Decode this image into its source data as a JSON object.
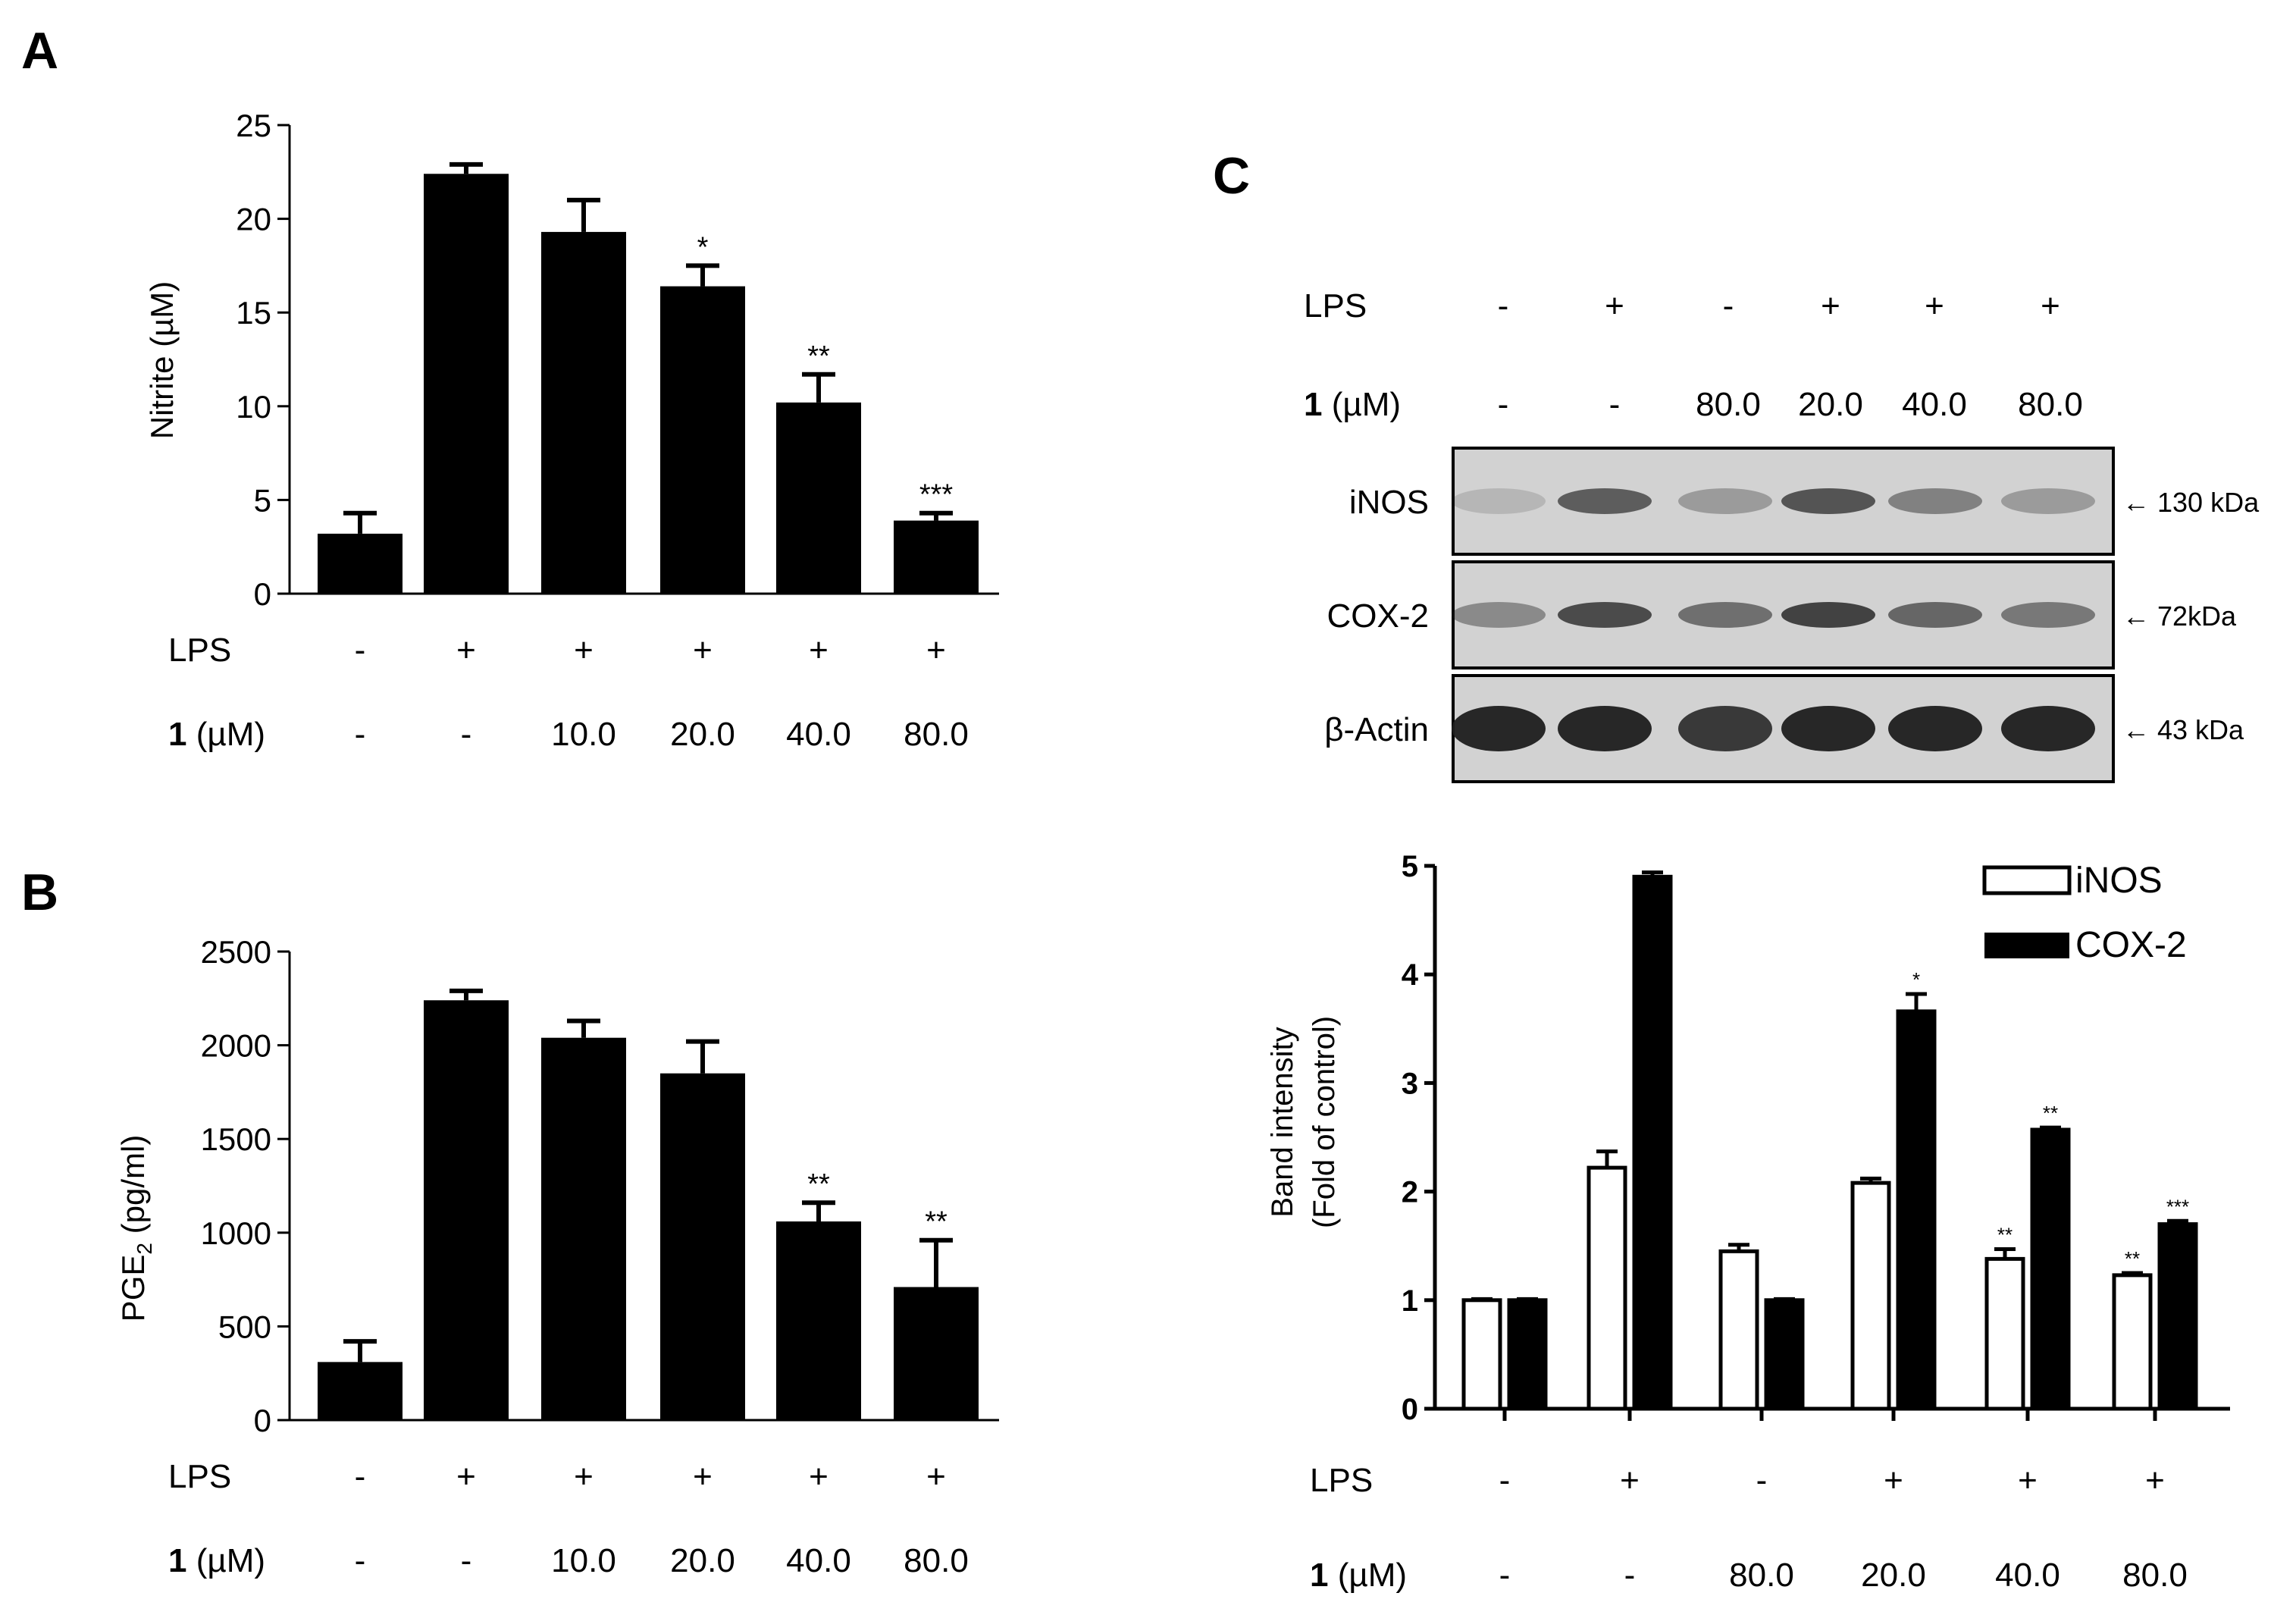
{
  "panels": [
    {
      "letter": "A"
    },
    {
      "letter": "B"
    },
    {
      "letter": "C"
    }
  ],
  "treatment_rows": {
    "lps_label": "LPS",
    "compound_bold": "1",
    "compound_unit": " (µM)",
    "lps_ab": [
      "-",
      "+",
      "+",
      "+",
      "+",
      "+"
    ],
    "dose_ab": [
      "-",
      "-",
      "10.0",
      "20.0",
      "40.0",
      "80.0"
    ],
    "lps_c": [
      "-",
      "+",
      "-",
      "+",
      "+",
      "+"
    ],
    "dose_c": [
      "-",
      "-",
      "80.0",
      "20.0",
      "40.0",
      "80.0"
    ]
  },
  "blot": {
    "row_labels": [
      "iNOS",
      "COX-2",
      "β-Actin"
    ],
    "mw_labels": [
      "← 130 kDa",
      "← 72kDa",
      "← 43 kDa"
    ],
    "band_intensity": {
      "iNOS": [
        0.15,
        0.65,
        0.3,
        0.7,
        0.45,
        0.3
      ],
      "COX-2": [
        0.4,
        0.75,
        0.55,
        0.8,
        0.6,
        0.5
      ],
      "β-Actin": [
        0.95,
        0.95,
        0.85,
        0.95,
        0.95,
        0.95
      ]
    }
  },
  "colors": {
    "bar_black": "#000000",
    "blot_bg": "#d2d2d2",
    "band": "#1e1e1e"
  },
  "chart_data": [
    {
      "panel": "A",
      "type": "bar",
      "categories": [
        "1",
        "2",
        "3",
        "4",
        "5",
        "6"
      ],
      "values": [
        3.2,
        22.4,
        19.3,
        16.4,
        10.2,
        3.9
      ],
      "errors": [
        1.1,
        0.5,
        1.7,
        1.1,
        1.5,
        0.4
      ],
      "significance": [
        "",
        "",
        "",
        "*",
        "**",
        "***"
      ],
      "ylabel": "Nitrite (µM)",
      "ylim": [
        0,
        25
      ],
      "yticks": [
        0,
        5,
        10,
        15,
        20,
        25
      ]
    },
    {
      "panel": "B",
      "type": "bar",
      "categories": [
        "1",
        "2",
        "3",
        "4",
        "5",
        "6"
      ],
      "values": [
        310,
        2240,
        2040,
        1850,
        1060,
        710
      ],
      "errors": [
        110,
        50,
        90,
        170,
        100,
        250
      ],
      "significance": [
        "",
        "",
        "",
        "",
        "**",
        "**"
      ],
      "ylabel_main": "PGE",
      "ylabel_sub": "2",
      "ylabel_rest": " (pg/ml)",
      "ylim": [
        0,
        2500
      ],
      "yticks": [
        0,
        500,
        1000,
        1500,
        2000,
        2500
      ]
    },
    {
      "panel": "C",
      "type": "bar",
      "categories": [
        "1",
        "2",
        "3",
        "4",
        "5",
        "6"
      ],
      "series": [
        {
          "name": "iNOS",
          "values": [
            1.0,
            2.22,
            1.45,
            2.08,
            1.38,
            1.23
          ],
          "errors": [
            0.01,
            0.15,
            0.06,
            0.04,
            0.09,
            0.02
          ],
          "significance": [
            "",
            "",
            "",
            "",
            "**",
            "**"
          ]
        },
        {
          "name": "COX-2",
          "values": [
            1.0,
            4.9,
            1.0,
            3.66,
            2.57,
            1.7
          ],
          "errors": [
            0.01,
            0.04,
            0.01,
            0.16,
            0.02,
            0.03
          ],
          "significance": [
            "",
            "",
            "",
            "*",
            "**",
            "***"
          ]
        }
      ],
      "ylabel_line1": "Band intensity",
      "ylabel_line2": "(Fold of control)",
      "ylim": [
        0,
        5
      ],
      "yticks": [
        0,
        1,
        2,
        3,
        4,
        5
      ],
      "legend_position": "top-right"
    }
  ]
}
